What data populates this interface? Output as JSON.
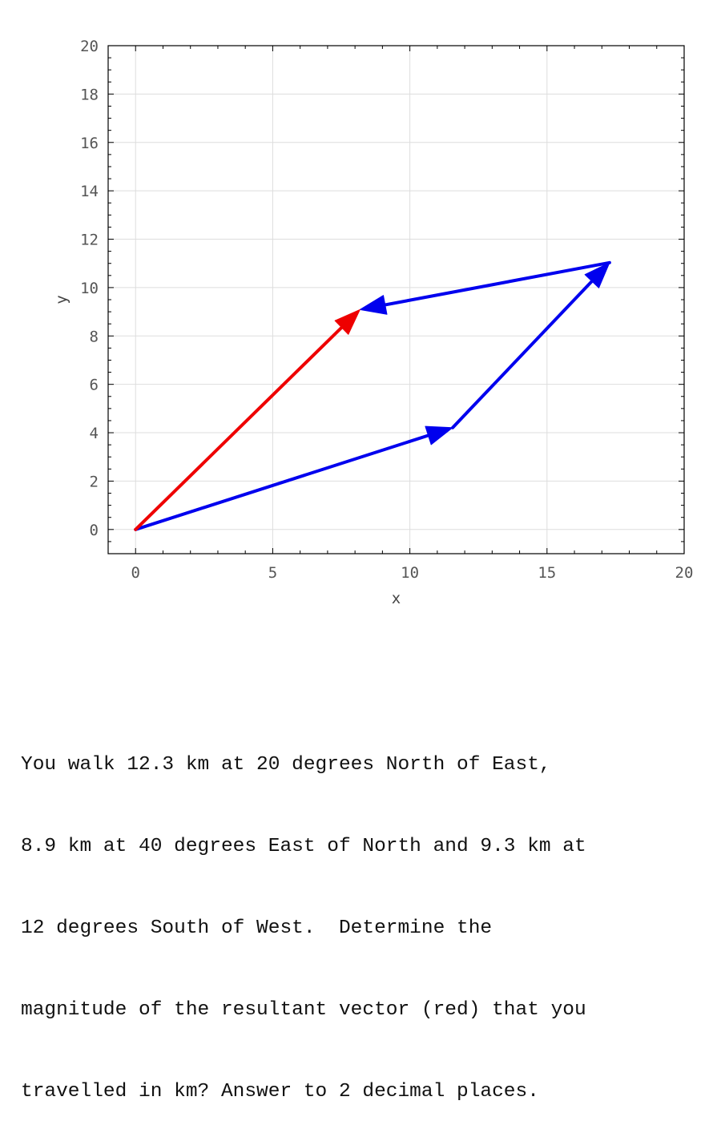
{
  "chart_data": {
    "type": "vector-diagram",
    "xlabel": "x",
    "ylabel": "y",
    "xlim": [
      -1,
      20
    ],
    "ylim": [
      -1,
      20
    ],
    "xticks": [
      0,
      5,
      10,
      15,
      20
    ],
    "yticks": [
      0,
      2,
      4,
      6,
      8,
      10,
      12,
      14,
      16,
      18,
      20
    ],
    "grid": true,
    "vectors": [
      {
        "role": "leg",
        "color": "#0000ee",
        "from": [
          0,
          0
        ],
        "to": [
          11.56,
          4.21
        ]
      },
      {
        "role": "leg",
        "color": "#0000ee",
        "from": [
          11.56,
          4.21
        ],
        "to": [
          17.28,
          11.03
        ]
      },
      {
        "role": "leg",
        "color": "#0000ee",
        "from": [
          17.28,
          11.03
        ],
        "to": [
          8.18,
          9.09
        ]
      },
      {
        "role": "resultant",
        "color": "#ee0000",
        "from": [
          0,
          0
        ],
        "to": [
          8.18,
          9.09
        ]
      }
    ]
  },
  "question": {
    "lines": [
      "You walk 12.3 km at 20 degrees North of East,",
      "8.9 km at 40 degrees East of North and 9.3 km at",
      "12 degrees South of West.  Determine the",
      "magnitude of the resultant vector (red) that you",
      "travelled in km? Answer to 2 decimal places."
    ]
  }
}
